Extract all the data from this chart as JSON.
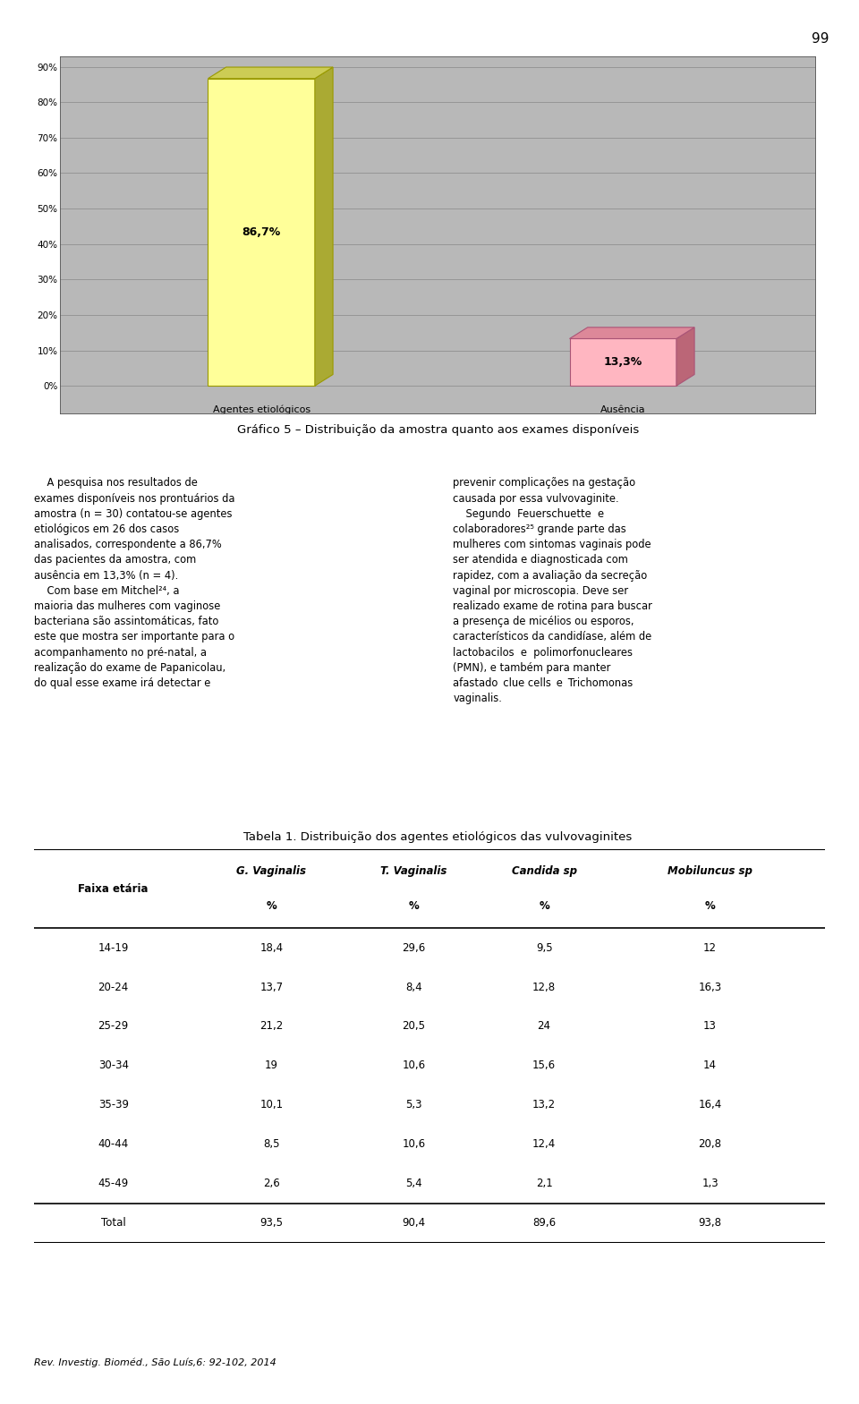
{
  "page_number": "99",
  "chart_title": "Gráfico 5 – Distribuição da amostra quanto aos exames disponíveis",
  "bar_categories": [
    "Agentes etiológicos",
    "Ausência"
  ],
  "bar_values": [
    86.7,
    13.3
  ],
  "bar_labels": [
    "86,7%",
    "13,3%"
  ],
  "bar_colors_face": [
    "#FFFF99",
    "#FFB6C1"
  ],
  "bar_colors_edge": [
    "#999900",
    "#AA5577"
  ],
  "bar_colors_3d_top": [
    "#CCCC55",
    "#DD8899"
  ],
  "bar_colors_3d_side": [
    "#AAAA33",
    "#BB6677"
  ],
  "ytick_vals": [
    0,
    10,
    20,
    30,
    40,
    50,
    60,
    70,
    80,
    90
  ],
  "ylabels": [
    "0%",
    "10%",
    "20%",
    "30%",
    "40%",
    "50%",
    "60%",
    "70%",
    "80%",
    "90%"
  ],
  "chart_bg": "#B8B8B8",
  "table_title": "Tabela 1. Distribuição dos agentes etiológicos das vulvovaginites",
  "table_rows": [
    [
      "14-19",
      "18,4",
      "29,6",
      "9,5",
      "12"
    ],
    [
      "20-24",
      "13,7",
      "8,4",
      "12,8",
      "16,3"
    ],
    [
      "25-29",
      "21,2",
      "20,5",
      "24",
      "13"
    ],
    [
      "30-34",
      "19",
      "10,6",
      "15,6",
      "14"
    ],
    [
      "35-39",
      "10,1",
      "5,3",
      "13,2",
      "16,4"
    ],
    [
      "40-44",
      "8,5",
      "10,6",
      "12,4",
      "20,8"
    ],
    [
      "45-49",
      "2,6",
      "5,4",
      "2,1",
      "1,3"
    ]
  ],
  "table_total_row": [
    "Total",
    "93,5",
    "90,4",
    "89,6",
    "93,8"
  ],
  "footer_text": "Rev. Investig. Bioméd., São Luís,6: 92-102, 2014",
  "page_bg": "#FFFFFF"
}
